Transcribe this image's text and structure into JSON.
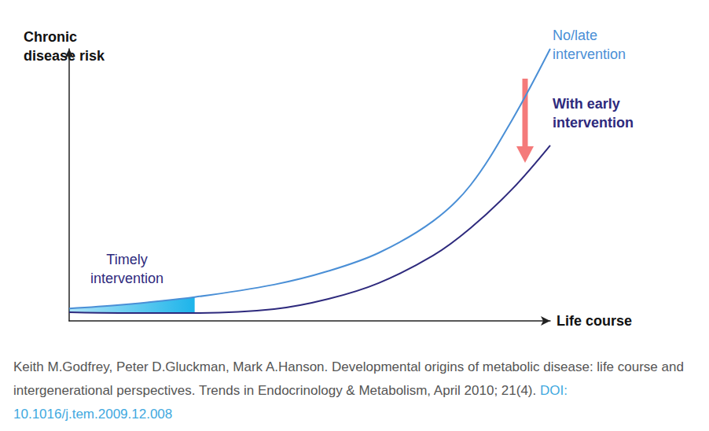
{
  "chart_data": {
    "type": "line",
    "x_label": "Life course",
    "y_label": "Chronic disease risk",
    "x": [
      0,
      12,
      30,
      49,
      62,
      74,
      87,
      96,
      106,
      115
    ],
    "xlim": [
      0,
      115
    ],
    "ylim": [
      0,
      120
    ],
    "series": [
      {
        "name": "No/late intervention",
        "color": "#4a8fd6",
        "values": [
          5.5,
          7,
          10.5,
          16,
          22,
          30,
          44,
          60,
          89,
          120
        ]
      },
      {
        "name": "With early intervention",
        "color": "#2e2a7d",
        "values": [
          3.8,
          3.5,
          3.5,
          5.2,
          9.7,
          16.7,
          28.8,
          41,
          58.3,
          77.4
        ]
      }
    ],
    "annotations": [
      {
        "text": "Timely intervention",
        "x_range": [
          0,
          30
        ],
        "color": "#1db4ea"
      }
    ],
    "grid": false,
    "tick_labels": false
  },
  "caption": {
    "text": "Keith M.Godfrey, Peter D.Gluckman, Mark A.Hanson. Developmental origins of metabolic disease: life course and intergenerational perspectives. Trends in Endocrinology & Metabolism, April 2010; 21(4).",
    "doi": "DOI: 10.1016/j.tem.2009.12.008"
  }
}
